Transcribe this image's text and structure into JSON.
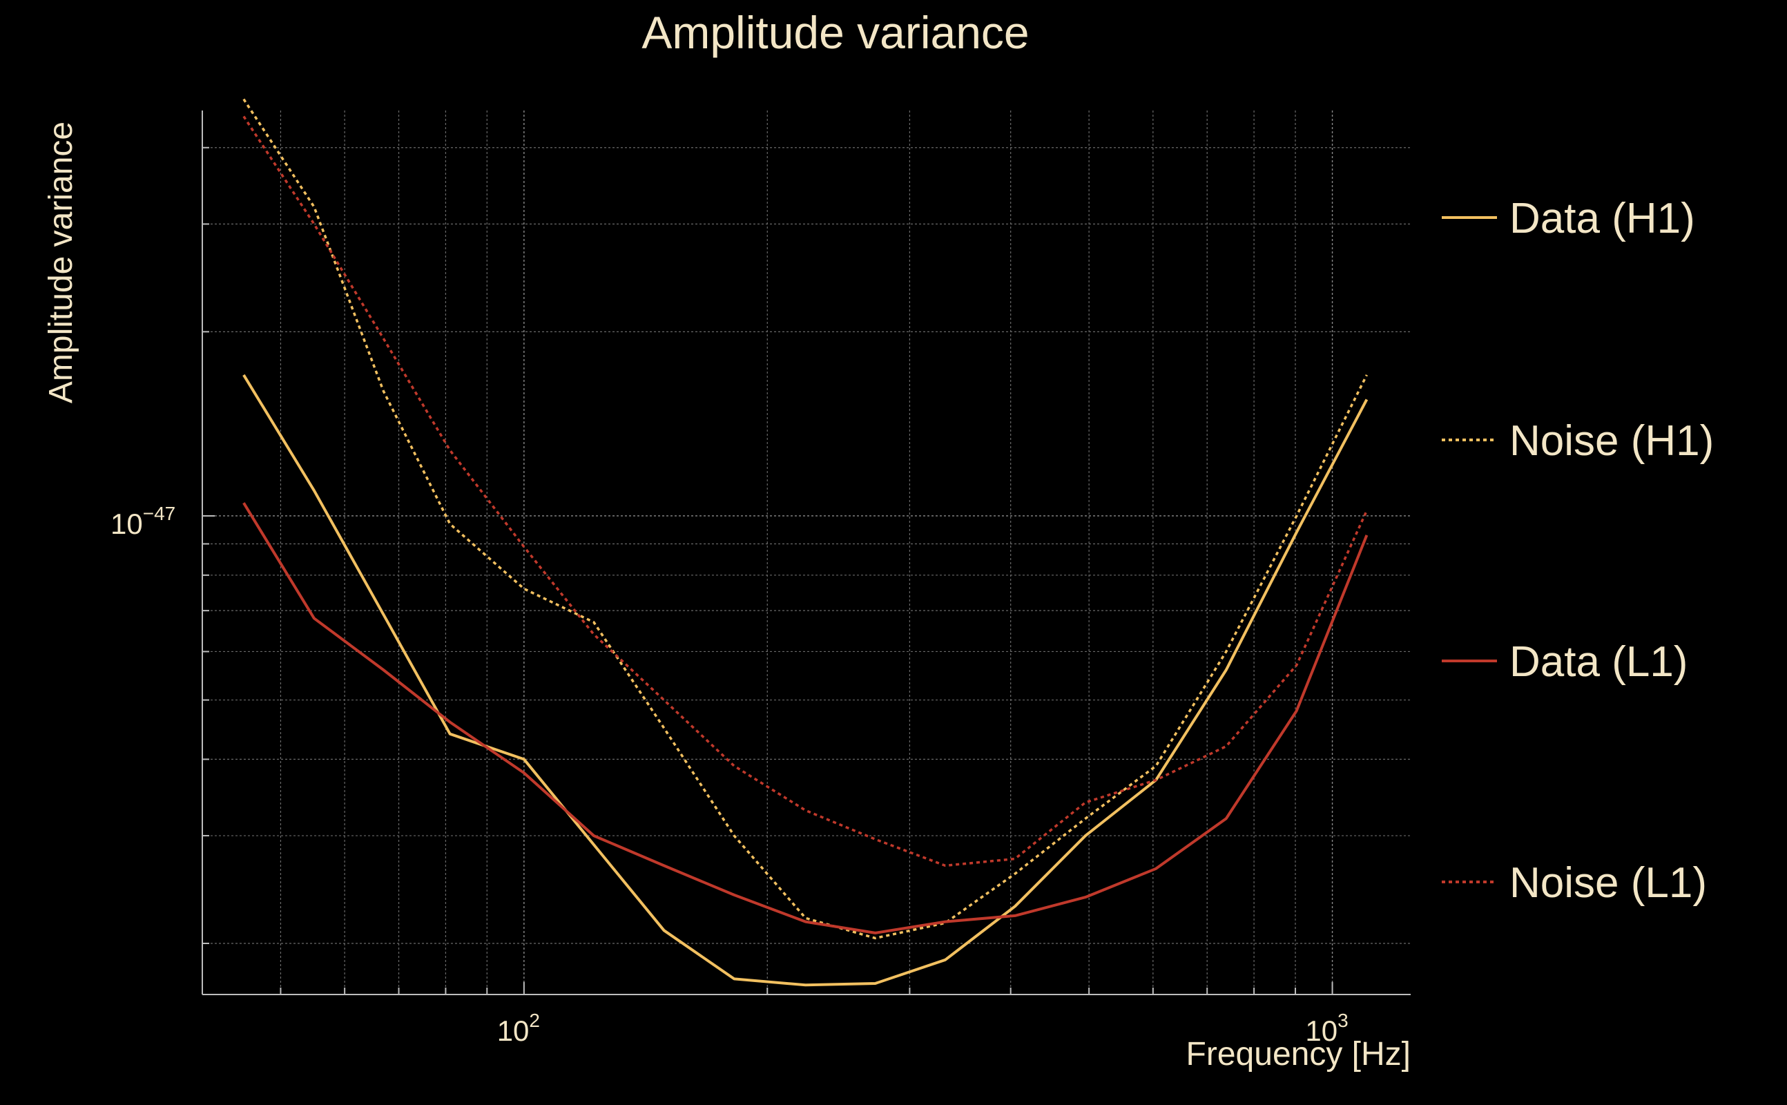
{
  "chart_data": {
    "type": "line",
    "title": "Amplitude variance",
    "xlabel": "Frequency [Hz]",
    "ylabel": "Amplitude variance",
    "xscale": "log",
    "yscale": "log",
    "xlim": [
      40,
      1250
    ],
    "ylim": [
      1.65e-48,
      4.6e-47
    ],
    "x_ticks": [
      {
        "base": "10",
        "exp": "2",
        "value": 100
      },
      {
        "base": "10",
        "exp": "3",
        "value": 1000
      }
    ],
    "y_ticks": [
      {
        "base": "10",
        "exp": "−47",
        "value": 1e-47
      }
    ],
    "grid": true,
    "legend_position": "right",
    "x": [
      45,
      55,
      67,
      81,
      100,
      122,
      149,
      182,
      223,
      272,
      332,
      405,
      495,
      605,
      739,
      903,
      1103
    ],
    "series": [
      {
        "name": "Data (H1)",
        "color": "#f2c060",
        "dash": "solid",
        "values": [
          1.7e-47,
          1.1e-47,
          6.9e-48,
          4.4e-48,
          4e-48,
          2.9e-48,
          2.1e-48,
          1.75e-48,
          1.71e-48,
          1.72e-48,
          1.88e-48,
          2.3e-48,
          3e-48,
          3.7e-48,
          5.6e-48,
          9.4e-48,
          1.55e-47
        ]
      },
      {
        "name": "Noise (H1)",
        "color": "#f2c060",
        "dash": "dotted",
        "values": [
          4.8e-47,
          3.2e-47,
          1.6e-47,
          9.7e-48,
          7.6e-48,
          6.7e-48,
          4.5e-48,
          3e-48,
          2.2e-48,
          2.04e-48,
          2.16e-48,
          2.6e-48,
          3.2e-48,
          3.9e-48,
          6e-48,
          1e-47,
          1.7e-47
        ]
      },
      {
        "name": "Data (L1)",
        "color": "#c0392b",
        "dash": "solid",
        "values": [
          1.05e-47,
          6.8e-48,
          5.6e-48,
          4.6e-48,
          3.8e-48,
          3e-48,
          2.68e-48,
          2.4e-48,
          2.17e-48,
          2.08e-48,
          2.17e-48,
          2.22e-48,
          2.38e-48,
          2.65e-48,
          3.2e-48,
          4.8e-48,
          9.3e-48
        ]
      },
      {
        "name": "Noise (L1)",
        "color": "#c0392b",
        "dash": "dotted",
        "values": [
          4.5e-47,
          3e-47,
          1.95e-47,
          1.28e-47,
          8.9e-48,
          6.4e-48,
          5e-48,
          3.9e-48,
          3.3e-48,
          2.96e-48,
          2.68e-48,
          2.75e-48,
          3.4e-48,
          3.7e-48,
          4.2e-48,
          5.7e-48,
          1.02e-47
        ]
      }
    ]
  }
}
